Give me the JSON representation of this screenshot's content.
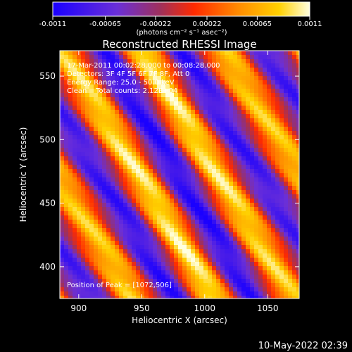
{
  "chart_data": {
    "type": "heatmap",
    "title": "Reconstructed RHESSI Image",
    "xlabel": "Heliocentric X (arcsec)",
    "ylabel": "Heliocentric Y (arcsec)",
    "xlim": [
      885,
      1075
    ],
    "ylim": [
      375,
      570
    ],
    "x_ticks": [
      900,
      950,
      1000,
      1050
    ],
    "y_ticks": [
      400,
      450,
      500,
      550
    ],
    "x_tick_labels": [
      "900",
      "950",
      "1000",
      "1050"
    ],
    "y_tick_labels": [
      "400",
      "450",
      "500",
      "550"
    ],
    "colorbar": {
      "min": -0.0011,
      "max": 0.0011,
      "tick_labels": [
        "-0.0011",
        "-0.00065",
        "-0.00022",
        "0.00022",
        "0.00065",
        "0.0011"
      ],
      "unit_label": "(photons cm⁻² s⁻¹ asec⁻²)",
      "colormap": [
        "#1a00ff",
        "#6a2fd8",
        "#a0305a",
        "#ff2a00",
        "#ff8a00",
        "#ffd000",
        "#ffffe0"
      ]
    },
    "bands": {
      "direction_slope": -1.6,
      "bright_ridges_at_x_for_y_475": [
        880,
        945,
        1010,
        1070
      ],
      "peak_value": 0.0011,
      "trough_value": -0.0011
    },
    "annotations": {
      "time_range": "17-Mar-2011 00:02:28.000 to 00:08:28.000",
      "detectors": "Detectors: 3F 4F 5F 6F 7F 8F, Att 0",
      "energy": "Energy Range: 25.0 - 50.0 keV",
      "clean": "Clean    Total counts: 2.12E+04",
      "peak": "Position of Peak = [1072,506]"
    },
    "grid": false
  },
  "footer": {
    "timestamp": "10-May-2022 02:39"
  }
}
